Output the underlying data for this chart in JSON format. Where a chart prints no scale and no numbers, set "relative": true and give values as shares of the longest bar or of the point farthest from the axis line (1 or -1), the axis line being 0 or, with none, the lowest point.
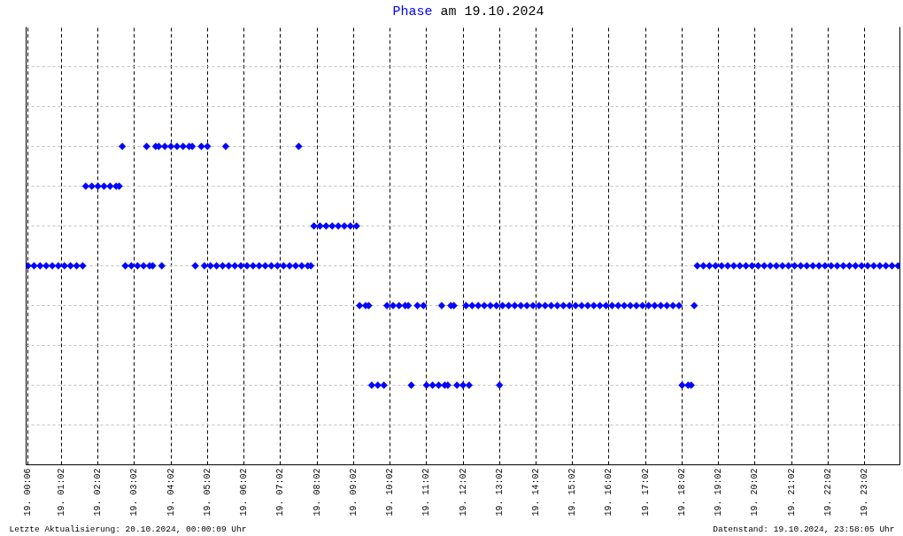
{
  "chart_data": {
    "type": "scatter",
    "title": "Phase am 19.10.2024",
    "annotations": [
      "Letzte Aktualisierung: 20.10.2024, 00:00:09 Uhr",
      "Datenstand: 19.10.2024, 23:58:05 Uhr"
    ],
    "relative": true,
    "grid": true,
    "marker": "diamond",
    "categories": [
      "19. 00:06",
      null,
      null,
      null,
      null,
      null,
      null,
      null,
      null,
      null,
      null,
      "19. 01:02",
      null,
      null,
      null,
      null,
      null,
      null,
      null,
      null,
      null,
      null,
      null,
      "19. 02:02",
      null,
      null,
      null,
      null,
      null,
      null,
      null,
      null,
      null,
      null,
      null,
      "19. 03:02",
      null,
      null,
      null,
      null,
      null,
      null,
      null,
      null,
      null,
      null,
      null,
      "19. 04:02",
      null,
      null,
      null,
      null,
      null,
      null,
      null,
      null,
      null,
      null,
      null,
      "19. 05:02",
      null,
      null,
      null,
      null,
      null,
      null,
      null,
      null,
      null,
      null,
      null,
      "19. 06:02",
      null,
      null,
      null,
      null,
      null,
      null,
      null,
      null,
      null,
      null,
      null,
      "19. 07:02",
      null,
      null,
      null,
      null,
      null,
      null,
      null,
      null,
      null,
      null,
      null,
      "19. 08:02",
      null,
      null,
      null,
      null,
      null,
      null,
      null,
      null,
      null,
      null,
      null,
      "19. 09:02",
      null,
      null,
      null,
      null,
      null,
      null,
      null,
      null,
      null,
      null,
      null,
      "19. 10:02",
      null,
      null,
      null,
      null,
      null,
      null,
      null,
      null,
      null,
      null,
      null,
      "19. 11:02",
      null,
      null,
      null,
      null,
      null,
      null,
      null,
      null,
      null,
      null,
      null,
      "19. 12:02",
      null,
      null,
      null,
      null,
      null,
      null,
      null,
      null,
      null,
      null,
      null,
      "19. 13:02",
      null,
      null,
      null,
      null,
      null,
      null,
      null,
      null,
      null,
      null,
      null,
      "19. 14:02",
      null,
      null,
      null,
      null,
      null,
      null,
      null,
      null,
      null,
      null,
      null,
      "19. 15:02",
      null,
      null,
      null,
      null,
      null,
      null,
      null,
      null,
      null,
      null,
      null,
      "19. 16:02",
      null,
      null,
      null,
      null,
      null,
      null,
      null,
      null,
      null,
      null,
      null,
      "19. 17:02",
      null,
      null,
      null,
      null,
      null,
      null,
      null,
      null,
      null,
      null,
      null,
      "19. 18:02",
      null,
      null,
      null,
      null,
      null,
      null,
      null,
      null,
      null,
      null,
      null,
      "19. 19:02",
      null,
      null,
      null,
      null,
      null,
      null,
      null,
      null,
      null,
      null,
      null,
      "19. 20:02",
      null,
      null,
      null,
      null,
      null,
      null,
      null,
      null,
      null,
      null,
      null,
      "19. 21:02",
      null,
      null,
      null,
      null,
      null,
      null,
      null,
      null,
      null,
      null,
      null,
      "19. 22:02",
      null,
      null,
      null,
      null,
      null,
      null,
      null,
      null,
      null,
      null,
      null,
      "19. 23:02",
      null,
      null,
      null,
      null,
      null,
      null,
      null,
      null,
      null,
      null,
      null
    ],
    "series": [
      {
        "color": "#0000ff",
        "values": [
          0.625,
          null,
          0.625,
          null,
          0.625,
          null,
          0.625,
          null,
          0.625,
          null,
          0.625,
          null,
          0.625,
          null,
          0.625,
          null,
          0.625,
          null,
          0.625,
          0.875,
          null,
          0.875,
          null,
          0.875,
          null,
          0.875,
          null,
          0.875,
          null,
          0.875,
          0.875,
          1,
          0.625,
          null,
          0.625,
          null,
          0.625,
          null,
          0.625,
          1,
          0.625,
          0.625,
          1,
          1,
          0.625,
          1,
          null,
          1,
          null,
          1,
          null,
          1,
          null,
          1,
          1,
          0.625,
          null,
          1,
          0.625,
          1,
          0.625,
          null,
          0.625,
          null,
          0.625,
          1,
          0.625,
          null,
          0.625,
          null,
          0.625,
          null,
          0.625,
          null,
          0.625,
          null,
          0.625,
          null,
          0.625,
          null,
          0.625,
          null,
          0.625,
          null,
          0.625,
          null,
          0.625,
          null,
          0.625,
          1,
          0.625,
          null,
          0.625,
          0.625,
          0.75,
          null,
          0.75,
          null,
          0.75,
          null,
          0.75,
          null,
          0.75,
          null,
          0.75,
          null,
          0.75,
          null,
          0.75,
          0.5,
          null,
          0.5,
          0.5,
          0.25,
          null,
          0.25,
          null,
          0.25,
          0.5,
          null,
          0.5,
          null,
          0.5,
          null,
          0.5,
          0.5,
          0.25,
          null,
          0.5,
          null,
          0.5,
          0.25,
          null,
          0.25,
          null,
          0.25,
          0.5,
          0.25,
          0.25,
          0.5,
          0.5,
          0.25,
          null,
          0.25,
          0.5,
          0.25,
          0.5,
          null,
          0.5,
          null,
          0.5,
          null,
          0.5,
          null,
          0.5,
          0.25,
          0.5,
          null,
          0.5,
          null,
          0.5,
          null,
          0.5,
          null,
          0.5,
          null,
          0.5,
          null,
          0.5,
          null,
          0.5,
          null,
          0.5,
          null,
          0.5,
          null,
          0.5,
          null,
          0.5,
          null,
          0.5,
          null,
          0.5,
          null,
          0.5,
          null,
          0.5,
          null,
          0.5,
          null,
          0.5,
          null,
          0.5,
          null,
          0.5,
          null,
          0.5,
          null,
          0.5,
          null,
          0.5,
          null,
          0.5,
          null,
          0.5,
          null,
          0.5,
          null,
          0.5,
          null,
          0.5,
          null,
          0.5,
          null,
          0.5,
          0.25,
          null,
          0.25,
          0.25,
          0.5,
          0.625,
          null,
          0.625,
          null,
          0.625,
          null,
          0.625,
          null,
          0.625,
          null,
          0.625,
          null,
          0.625,
          null,
          0.625,
          null,
          0.625,
          null,
          0.625,
          null,
          0.625,
          null,
          0.625,
          null,
          0.625,
          null,
          0.625,
          null,
          0.625,
          null,
          0.625,
          null,
          0.625,
          null,
          0.625,
          null,
          0.625,
          null,
          0.625,
          null,
          0.625,
          null,
          0.625,
          null,
          0.625,
          null,
          0.625,
          null,
          0.625,
          null,
          0.625,
          null,
          0.625,
          null,
          0.625,
          null,
          0.625,
          null,
          0.625,
          null,
          0.625,
          null,
          0.625,
          null,
          0.625,
          null,
          0.625
        ]
      }
    ]
  }
}
